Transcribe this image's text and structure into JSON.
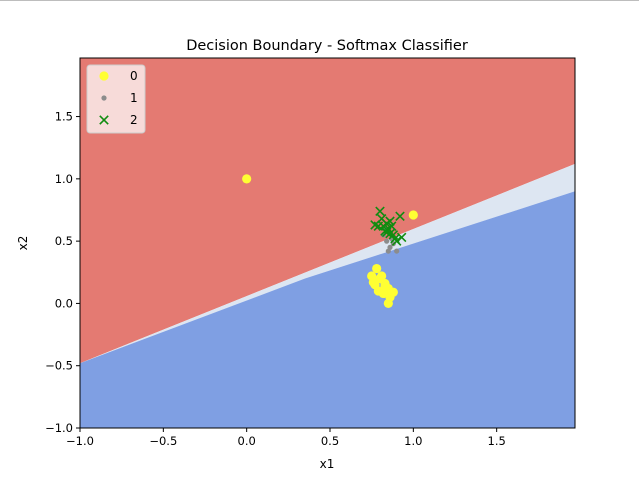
{
  "chart_data": {
    "type": "scatter",
    "title": "Decision Boundary - Softmax Classifier",
    "xlabel": "x1",
    "ylabel": "x2",
    "xlim": [
      -1.0,
      1.97
    ],
    "ylim": [
      -1.0,
      1.97
    ],
    "xticks": [
      "−1.0",
      "−0.5",
      "0.0",
      "0.5",
      "1.0",
      "1.5"
    ],
    "xtick_values": [
      -1.0,
      -0.5,
      0.0,
      0.5,
      1.0,
      1.5
    ],
    "yticks": [
      "−1.0",
      "−0.5",
      "0.0",
      "0.5",
      "1.0",
      "1.5"
    ],
    "ytick_values": [
      -1.0,
      -0.5,
      0.0,
      0.5,
      1.0,
      1.5
    ],
    "grid": false,
    "legend_position": "top-left",
    "colors": {
      "region_0": "#e47a72",
      "region_1": "#dde6f2",
      "region_2": "#7f9fe3",
      "class_0": "#ffff33",
      "class_1": "#8c8c8c",
      "class_2": "#108c10"
    },
    "regions": {
      "upper_boundary": [
        [
          -1.0,
          -0.48
        ],
        [
          1.97,
          1.12
        ]
      ],
      "lower_boundary": [
        [
          -1.0,
          -0.48
        ],
        [
          0.35,
          0.2
        ],
        [
          1.97,
          0.9
        ]
      ]
    },
    "series": [
      {
        "name": "0",
        "marker": "circle",
        "points": [
          [
            0.0,
            1.0
          ],
          [
            1.0,
            0.71
          ],
          [
            0.75,
            0.22
          ],
          [
            0.78,
            0.28
          ],
          [
            0.77,
            0.15
          ],
          [
            0.79,
            0.1
          ],
          [
            0.8,
            0.2
          ],
          [
            0.81,
            0.22
          ],
          [
            0.83,
            0.16
          ],
          [
            0.84,
            0.1
          ],
          [
            0.85,
            0.12
          ],
          [
            0.82,
            0.08
          ],
          [
            0.86,
            0.05
          ],
          [
            0.85,
            0.0
          ],
          [
            0.88,
            0.09
          ],
          [
            0.83,
            0.14
          ],
          [
            0.76,
            0.17
          ]
        ]
      },
      {
        "name": "1",
        "marker": "dot",
        "points": [
          [
            0.82,
            0.55
          ],
          [
            0.84,
            0.5
          ],
          [
            0.86,
            0.45
          ],
          [
            0.85,
            0.42
          ],
          [
            0.88,
            0.48
          ],
          [
            0.83,
            0.6
          ],
          [
            0.87,
            0.52
          ],
          [
            0.9,
            0.42
          ]
        ]
      },
      {
        "name": "2",
        "marker": "x",
        "points": [
          [
            0.77,
            0.63
          ],
          [
            0.79,
            0.62
          ],
          [
            0.8,
            0.74
          ],
          [
            0.81,
            0.68
          ],
          [
            0.82,
            0.62
          ],
          [
            0.83,
            0.58
          ],
          [
            0.84,
            0.64
          ],
          [
            0.85,
            0.6
          ],
          [
            0.86,
            0.56
          ],
          [
            0.87,
            0.62
          ],
          [
            0.88,
            0.55
          ],
          [
            0.89,
            0.52
          ],
          [
            0.9,
            0.5
          ],
          [
            0.92,
            0.7
          ],
          [
            0.93,
            0.53
          ],
          [
            0.84,
            0.57
          ],
          [
            0.86,
            0.66
          ]
        ]
      }
    ]
  }
}
